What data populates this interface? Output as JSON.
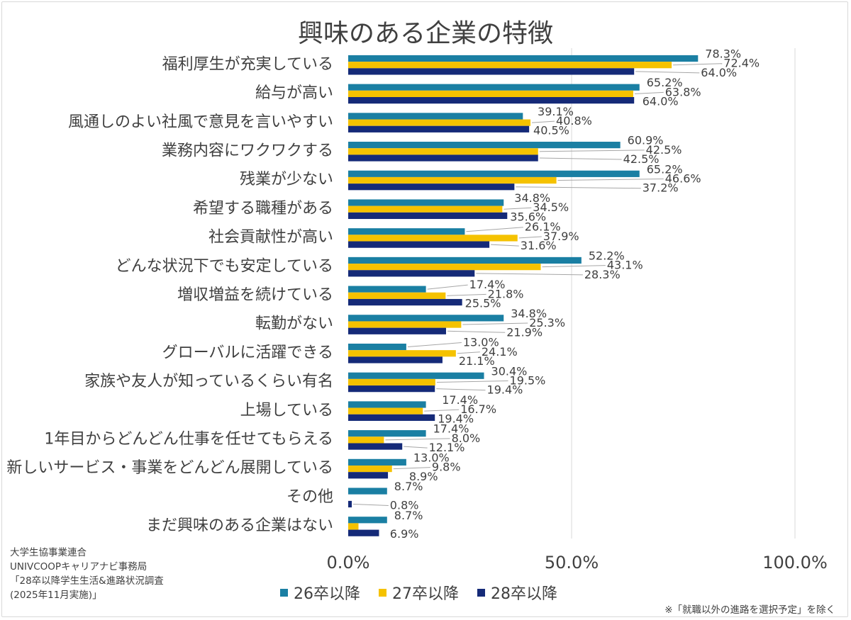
{
  "chart_data": {
    "type": "bar",
    "orientation": "horizontal",
    "title": "興味のある企業の特徴",
    "categories": [
      "福利厚生が充実している",
      "給与が高い",
      "風通しのよい社風で意見を言いやすい",
      "業務内容にワクワクする",
      "残業が少ない",
      "希望する職種がある",
      "社会貢献性が高い",
      "どんな状況下でも安定している",
      "増収増益を続けている",
      "転勤がない",
      "グローバルに活躍できる",
      "家族や友人が知っているくらい有名",
      "上場している",
      "1年目からどんどん仕事を任せてもらえる",
      "新しいサービス・事業をどんどん展開している",
      "その他",
      "まだ興味のある企業はない"
    ],
    "series": [
      {
        "name": "26卒以降",
        "color": "#1a7fa3",
        "values": [
          78.3,
          65.2,
          39.1,
          60.9,
          65.2,
          34.8,
          26.1,
          52.2,
          17.4,
          34.8,
          13.0,
          30.4,
          17.4,
          17.4,
          13.0,
          8.7,
          8.7
        ],
        "labels": [
          "78.3%",
          "65.2%",
          "39.1%",
          "60.9%",
          "65.2%",
          "34.8%",
          "26.1%",
          "52.2%",
          "17.4%",
          "34.8%",
          "13.0%",
          "30.4%",
          "17.4%",
          "17.4%",
          "13.0%",
          "8.7%",
          "8.7%"
        ]
      },
      {
        "name": "27卒以降",
        "color": "#f5c200",
        "values": [
          72.4,
          63.8,
          40.8,
          42.5,
          46.6,
          34.5,
          37.9,
          43.1,
          21.8,
          25.3,
          24.1,
          19.5,
          16.7,
          8.0,
          9.8,
          0.0,
          2.3
        ],
        "labels": [
          "72.4%",
          "63.8%",
          "40.8%",
          "42.5%",
          "46.6%",
          "34.5%",
          "37.9%",
          "43.1%",
          "21.8%",
          "25.3%",
          "24.1%",
          "19.5%",
          "16.7%",
          "8.0%",
          "9.8%",
          "",
          ""
        ]
      },
      {
        "name": "28卒以降",
        "color": "#152a78",
        "values": [
          64.0,
          64.0,
          40.5,
          42.5,
          37.2,
          35.6,
          31.6,
          28.3,
          25.5,
          21.9,
          21.1,
          19.4,
          19.4,
          12.1,
          8.9,
          0.8,
          6.9
        ],
        "labels": [
          "64.0%",
          "64.0%",
          "40.5%",
          "42.5%",
          "37.2%",
          "35.6%",
          "31.6%",
          "28.3%",
          "25.5%",
          "21.9%",
          "21.1%",
          "19.4%",
          "19.4%",
          "12.1%",
          "8.9%",
          "0.8%",
          "6.9%"
        ]
      }
    ],
    "xlim": [
      0,
      100
    ],
    "xticks": [
      "0.0%",
      "50.0%",
      "100.0%"
    ],
    "xtick_values": [
      0,
      50,
      100
    ],
    "grid": true,
    "legend_position": "bottom"
  },
  "source": {
    "lines": [
      "大学生協事業連合",
      "UNIVCOOPキャリアナビ事務局",
      "「28卒以降学生生活&進路状況調査",
      "(2025年11月実施)」"
    ]
  },
  "note": "※「就職以外の進路を選択予定」を除く"
}
